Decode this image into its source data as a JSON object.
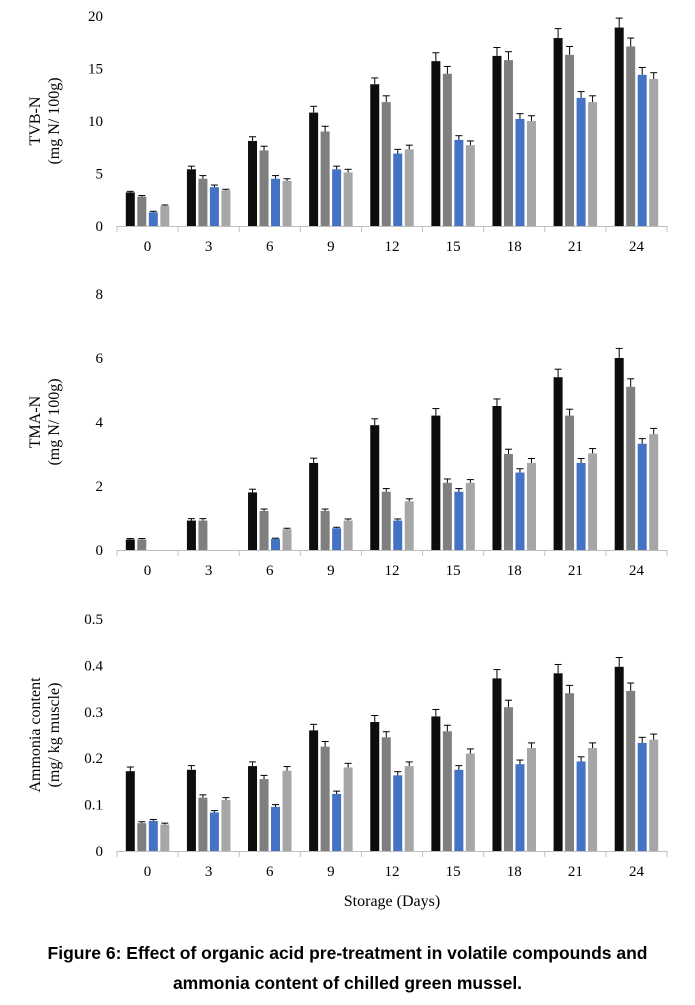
{
  "caption": {
    "line1": "Figure 6: Effect of organic acid pre-treatment in volatile compounds and",
    "line2": "ammonia content of chilled green mussel."
  },
  "colors": {
    "series": [
      "#0d0d0d",
      "#7f7f7f",
      "#4472c4",
      "#a6a6a6"
    ],
    "axis": "#bfbfbf",
    "error_bar": "#000000"
  },
  "chart_data": [
    {
      "type": "bar",
      "ylabel": [
        "TVB-N",
        "(mg N/ 100g)"
      ],
      "xlabel": "",
      "categories": [
        "0",
        "3",
        "6",
        "9",
        "12",
        "15",
        "18",
        "21",
        "24"
      ],
      "ylim": [
        0,
        20
      ],
      "yticks": [
        0,
        5,
        10,
        15,
        20
      ],
      "grid": false,
      "series": [
        {
          "values": [
            3.2,
            5.4,
            8.1,
            10.8,
            13.5,
            15.7,
            16.2,
            17.9,
            18.9
          ],
          "errors": [
            0.1,
            0.3,
            0.4,
            0.6,
            0.6,
            0.8,
            0.8,
            0.9,
            0.9
          ]
        },
        {
          "values": [
            2.8,
            4.5,
            7.2,
            9.0,
            11.8,
            14.5,
            15.8,
            16.3,
            17.1
          ],
          "errors": [
            0.1,
            0.3,
            0.4,
            0.5,
            0.6,
            0.7,
            0.8,
            0.8,
            0.8
          ]
        },
        {
          "values": [
            1.3,
            3.7,
            4.5,
            5.4,
            6.9,
            8.2,
            10.2,
            12.2,
            14.4
          ],
          "errors": [
            0.1,
            0.2,
            0.3,
            0.3,
            0.4,
            0.4,
            0.5,
            0.6,
            0.7
          ]
        },
        {
          "values": [
            1.9,
            3.4,
            4.3,
            5.1,
            7.3,
            7.7,
            10.0,
            11.8,
            14.0
          ],
          "errors": [
            0.1,
            0.1,
            0.2,
            0.3,
            0.4,
            0.4,
            0.5,
            0.6,
            0.6
          ]
        }
      ]
    },
    {
      "type": "bar",
      "ylabel": [
        "TMA-N",
        "(mg N/ 100g)"
      ],
      "xlabel": "",
      "categories": [
        "0",
        "3",
        "6",
        "9",
        "12",
        "15",
        "18",
        "21",
        "24"
      ],
      "ylim": [
        0,
        8
      ],
      "yticks": [
        0,
        2,
        4,
        6,
        8
      ],
      "grid": false,
      "series": [
        {
          "values": [
            0.33,
            0.92,
            1.8,
            2.72,
            3.9,
            4.2,
            4.5,
            5.4,
            6.0
          ],
          "errors": [
            0.03,
            0.06,
            0.1,
            0.15,
            0.2,
            0.22,
            0.22,
            0.25,
            0.3
          ]
        },
        {
          "values": [
            0.33,
            0.92,
            1.22,
            1.22,
            1.82,
            2.1,
            3.0,
            4.2,
            5.1
          ],
          "errors": [
            0.03,
            0.06,
            0.06,
            0.06,
            0.1,
            0.12,
            0.15,
            0.2,
            0.25
          ]
        },
        {
          "values": [
            0,
            0,
            0.35,
            0.68,
            0.92,
            1.82,
            2.42,
            2.72,
            3.32
          ],
          "errors": [
            0,
            0,
            0.02,
            0.03,
            0.05,
            0.1,
            0.12,
            0.14,
            0.16
          ]
        },
        {
          "values": [
            0,
            0,
            0.65,
            0.92,
            1.52,
            2.1,
            2.72,
            3.02,
            3.62
          ],
          "errors": [
            0,
            0,
            0.03,
            0.05,
            0.08,
            0.1,
            0.14,
            0.15,
            0.18
          ]
        }
      ]
    },
    {
      "type": "bar",
      "ylabel": [
        "Ammonia content",
        "(mg/ kg muscle)"
      ],
      "xlabel": "Storage (Days)",
      "categories": [
        "0",
        "3",
        "6",
        "9",
        "12",
        "15",
        "18",
        "21",
        "24"
      ],
      "ylim": [
        0,
        0.5
      ],
      "yticks": [
        0,
        0.1,
        0.2,
        0.3,
        0.4,
        0.5
      ],
      "grid": false,
      "series": [
        {
          "values": [
            0.172,
            0.175,
            0.183,
            0.26,
            0.278,
            0.29,
            0.372,
            0.383,
            0.397
          ],
          "errors": [
            0.009,
            0.009,
            0.009,
            0.013,
            0.014,
            0.015,
            0.019,
            0.019,
            0.02
          ]
        },
        {
          "values": [
            0.06,
            0.115,
            0.155,
            0.225,
            0.245,
            0.258,
            0.31,
            0.34,
            0.345
          ],
          "errors": [
            0.003,
            0.006,
            0.008,
            0.011,
            0.012,
            0.013,
            0.015,
            0.017,
            0.017
          ]
        },
        {
          "values": [
            0.065,
            0.083,
            0.095,
            0.123,
            0.163,
            0.175,
            0.187,
            0.193,
            0.233
          ],
          "errors": [
            0.003,
            0.004,
            0.005,
            0.006,
            0.008,
            0.009,
            0.009,
            0.01,
            0.012
          ]
        },
        {
          "values": [
            0.057,
            0.11,
            0.173,
            0.18,
            0.183,
            0.21,
            0.222,
            0.222,
            0.24
          ],
          "errors": [
            0.003,
            0.005,
            0.009,
            0.009,
            0.009,
            0.01,
            0.011,
            0.011,
            0.012
          ]
        }
      ]
    }
  ]
}
